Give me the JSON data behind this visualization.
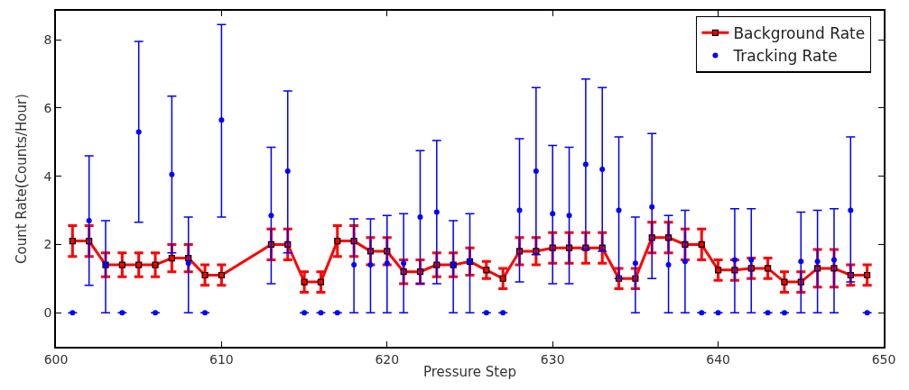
{
  "chart_data": {
    "type": "line",
    "xlabel": "Pressure Step",
    "ylabel": "Count Rate(Counts/Hour)",
    "xlim": [
      600,
      650
    ],
    "xticks": [
      600,
      610,
      620,
      630,
      640,
      650
    ],
    "ylim": [
      -1,
      8.85
    ],
    "yticks": [
      0,
      2,
      4,
      6,
      8
    ],
    "legend": "top right",
    "series": [
      {
        "name": "Background Rate",
        "color": "#ff0000",
        "marker": "square",
        "line_style": "solid",
        "x": [
          601,
          602,
          603,
          604,
          605,
          606,
          607,
          608,
          609,
          610,
          613,
          614,
          615,
          616,
          617,
          618,
          619,
          620,
          621,
          622,
          623,
          624,
          625,
          626,
          627,
          628,
          629,
          630,
          631,
          632,
          633,
          634,
          635,
          636,
          637,
          638,
          639,
          640,
          641,
          642,
          643,
          644,
          645,
          646,
          647,
          648,
          649
        ],
        "values": [
          2.1,
          2.1,
          1.4,
          1.4,
          1.4,
          1.4,
          1.6,
          1.6,
          1.1,
          1.1,
          2.0,
          2.0,
          0.9,
          0.9,
          2.1,
          2.1,
          1.8,
          1.8,
          1.2,
          1.2,
          1.4,
          1.4,
          1.5,
          1.25,
          1.0,
          1.8,
          1.8,
          1.9,
          1.9,
          1.9,
          1.9,
          1.0,
          1.0,
          2.2,
          2.2,
          2.0,
          2.0,
          1.25,
          1.25,
          1.3,
          1.3,
          0.9,
          0.9,
          1.3,
          1.3,
          1.1,
          1.1
        ],
        "errors": [
          0.45,
          0.45,
          0.35,
          0.35,
          0.35,
          0.35,
          0.4,
          0.4,
          0.3,
          0.3,
          0.45,
          0.45,
          0.3,
          0.3,
          0.45,
          0.45,
          0.4,
          0.4,
          0.35,
          0.35,
          0.35,
          0.35,
          0.4,
          0.25,
          0.3,
          0.4,
          0.4,
          0.45,
          0.45,
          0.45,
          0.45,
          0.3,
          0.3,
          0.45,
          0.45,
          0.45,
          0.45,
          0.3,
          0.3,
          0.3,
          0.3,
          0.3,
          0.3,
          0.55,
          0.55,
          0.3,
          0.3
        ]
      },
      {
        "name": "Tracking Rate",
        "type": "scatter",
        "color": "#0000ff",
        "marker": "circle",
        "x": [
          601,
          602,
          603,
          604,
          605,
          606,
          607,
          608,
          609,
          610,
          613,
          614,
          615,
          616,
          617,
          618,
          619,
          620,
          621,
          622,
          623,
          624,
          625,
          626,
          627,
          628,
          629,
          630,
          631,
          632,
          633,
          634,
          635,
          636,
          637,
          638,
          639,
          640,
          641,
          642,
          643,
          644,
          645,
          646,
          647,
          648,
          649
        ],
        "values": [
          0,
          2.7,
          1.4,
          0,
          5.3,
          0,
          4.05,
          1.45,
          0,
          5.65,
          2.85,
          4.15,
          0,
          0,
          0,
          1.4,
          1.4,
          1.45,
          1.45,
          2.8,
          2.95,
          1.4,
          1.5,
          0,
          0,
          3.0,
          4.15,
          2.9,
          2.85,
          4.35,
          4.2,
          3.0,
          1.45,
          3.1,
          1.4,
          1.5,
          0,
          0,
          1.55,
          1.55,
          0,
          0,
          1.5,
          1.5,
          1.55,
          3.0,
          0
        ],
        "errors": [
          null,
          [
            0.8,
            4.6
          ],
          [
            0,
            2.7
          ],
          null,
          [
            2.65,
            7.95
          ],
          null,
          [
            1.75,
            6.35
          ],
          [
            0,
            2.8
          ],
          null,
          [
            2.8,
            8.45
          ],
          [
            0.85,
            4.85
          ],
          [
            1.75,
            6.5
          ],
          null,
          null,
          null,
          [
            0,
            2.75
          ],
          [
            0,
            2.75
          ],
          [
            0,
            2.85
          ],
          [
            0,
            2.9
          ],
          [
            0.85,
            4.75
          ],
          [
            0.85,
            5.05
          ],
          [
            0,
            2.7
          ],
          [
            0,
            2.9
          ],
          null,
          null,
          [
            0.9,
            5.1
          ],
          [
            1.7,
            6.6
          ],
          [
            0.85,
            4.9
          ],
          [
            0.85,
            4.85
          ],
          [
            1.85,
            6.85
          ],
          [
            1.8,
            6.6
          ],
          [
            1.0,
            5.15
          ],
          [
            0,
            2.8
          ],
          [
            1.0,
            5.25
          ],
          [
            0,
            2.85
          ],
          [
            0,
            3.0
          ],
          null,
          null,
          [
            0,
            3.05
          ],
          [
            0,
            3.05
          ],
          null,
          null,
          [
            0,
            2.95
          ],
          [
            0,
            3.0
          ],
          [
            0,
            3.05
          ],
          [
            0.9,
            5.15
          ],
          null
        ]
      }
    ]
  }
}
